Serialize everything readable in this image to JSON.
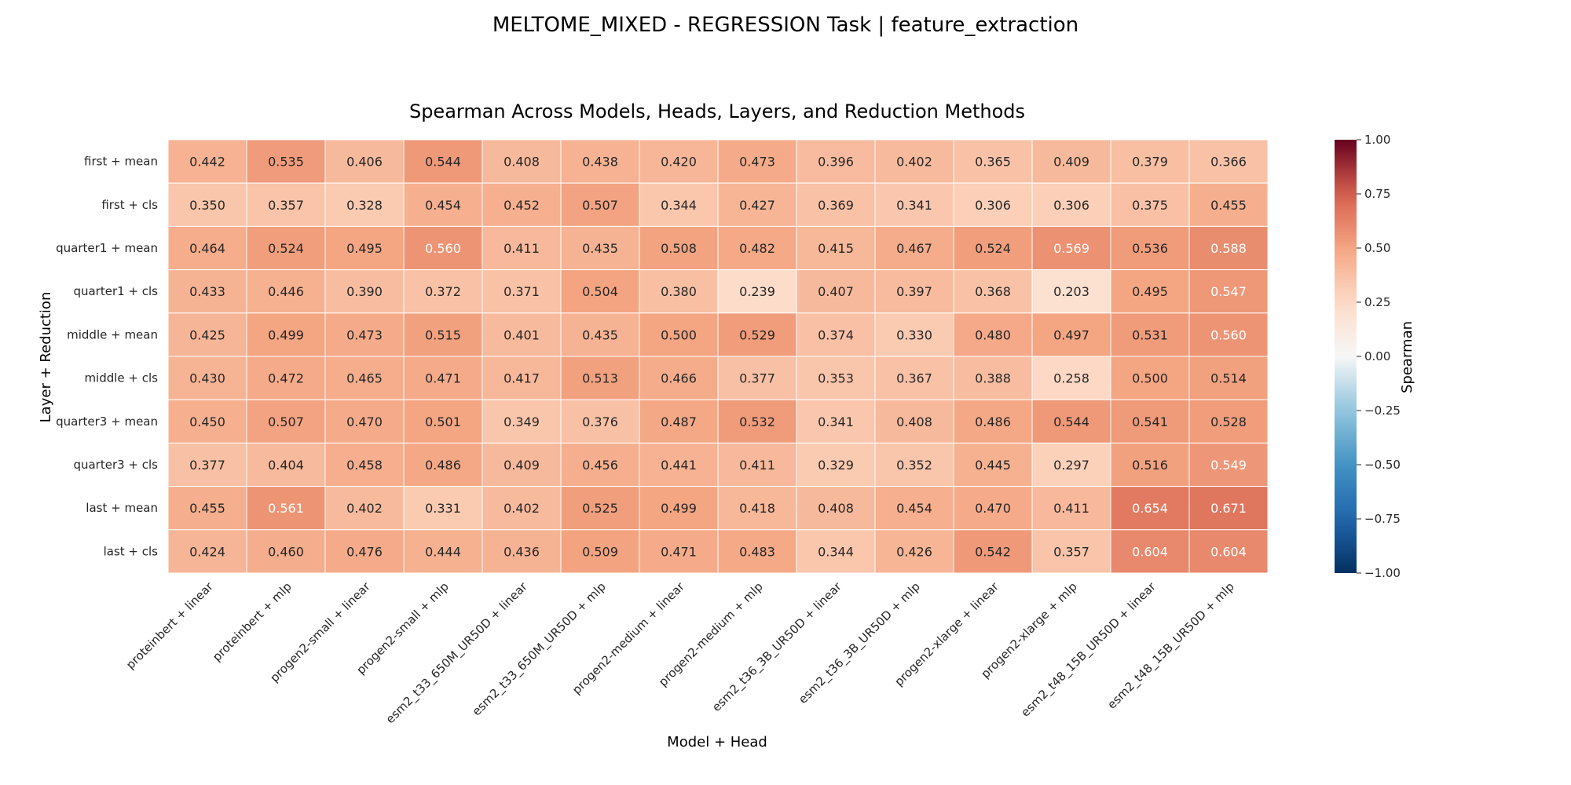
{
  "figure": {
    "suptitle": "MELTOME_MIXED - REGRESSION Task | feature_extraction"
  },
  "chart_data": {
    "type": "heatmap",
    "title": "Spearman Across Models, Heads, Layers, and Reduction Methods",
    "xlabel": "Model + Head",
    "ylabel": "Layer + Reduction",
    "x": [
      "proteinbert + linear",
      "proteinbert + mlp",
      "progen2-small + linear",
      "progen2-small + mlp",
      "esm2_t33_650M_UR50D + linear",
      "esm2_t33_650M_UR50D + mlp",
      "progen2-medium + linear",
      "progen2-medium + mlp",
      "esm2_t36_3B_UR50D + linear",
      "esm2_t36_3B_UR50D + mlp",
      "progen2-xlarge + linear",
      "progen2-xlarge + mlp",
      "esm2_t48_15B_UR50D + linear",
      "esm2_t48_15B_UR50D + mlp"
    ],
    "y": [
      "first + mean",
      "first + cls",
      "quarter1 + mean",
      "quarter1 + cls",
      "middle + mean",
      "middle + cls",
      "quarter3 + mean",
      "quarter3 + cls",
      "last + mean",
      "last + cls"
    ],
    "values": [
      [
        0.442,
        0.535,
        0.406,
        0.544,
        0.408,
        0.438,
        0.42,
        0.473,
        0.396,
        0.402,
        0.365,
        0.409,
        0.379,
        0.366
      ],
      [
        0.35,
        0.357,
        0.328,
        0.454,
        0.452,
        0.507,
        0.344,
        0.427,
        0.369,
        0.341,
        0.306,
        0.306,
        0.375,
        0.455
      ],
      [
        0.464,
        0.524,
        0.495,
        0.56,
        0.411,
        0.435,
        0.508,
        0.482,
        0.415,
        0.467,
        0.524,
        0.569,
        0.536,
        0.588
      ],
      [
        0.433,
        0.446,
        0.39,
        0.372,
        0.371,
        0.504,
        0.38,
        0.239,
        0.407,
        0.397,
        0.368,
        0.203,
        0.495,
        0.547
      ],
      [
        0.425,
        0.499,
        0.473,
        0.515,
        0.401,
        0.435,
        0.5,
        0.529,
        0.374,
        0.33,
        0.48,
        0.497,
        0.531,
        0.56
      ],
      [
        0.43,
        0.472,
        0.465,
        0.471,
        0.417,
        0.513,
        0.466,
        0.377,
        0.353,
        0.367,
        0.388,
        0.258,
        0.5,
        0.514
      ],
      [
        0.45,
        0.507,
        0.47,
        0.501,
        0.349,
        0.376,
        0.487,
        0.532,
        0.341,
        0.408,
        0.486,
        0.544,
        0.541,
        0.528
      ],
      [
        0.377,
        0.404,
        0.458,
        0.486,
        0.409,
        0.456,
        0.441,
        0.411,
        0.329,
        0.352,
        0.445,
        0.297,
        0.516,
        0.549
      ],
      [
        0.455,
        0.561,
        0.402,
        0.331,
        0.402,
        0.525,
        0.499,
        0.418,
        0.408,
        0.454,
        0.47,
        0.411,
        0.654,
        0.671
      ],
      [
        0.424,
        0.46,
        0.476,
        0.444,
        0.436,
        0.509,
        0.471,
        0.483,
        0.344,
        0.426,
        0.542,
        0.357,
        0.604,
        0.604
      ]
    ],
    "colormap": "RdBu_r",
    "vmin": -1.0,
    "vmax": 1.0,
    "value_format": "0.000",
    "colorbar": {
      "label": "Spearman",
      "ticks": [
        "1.00",
        "0.75",
        "0.50",
        "0.25",
        "0.00",
        "−0.25",
        "−0.50",
        "−0.75",
        "−1.00"
      ],
      "tick_values": [
        1.0,
        0.75,
        0.5,
        0.25,
        0.0,
        -0.25,
        -0.5,
        -0.75,
        -1.0
      ]
    }
  }
}
